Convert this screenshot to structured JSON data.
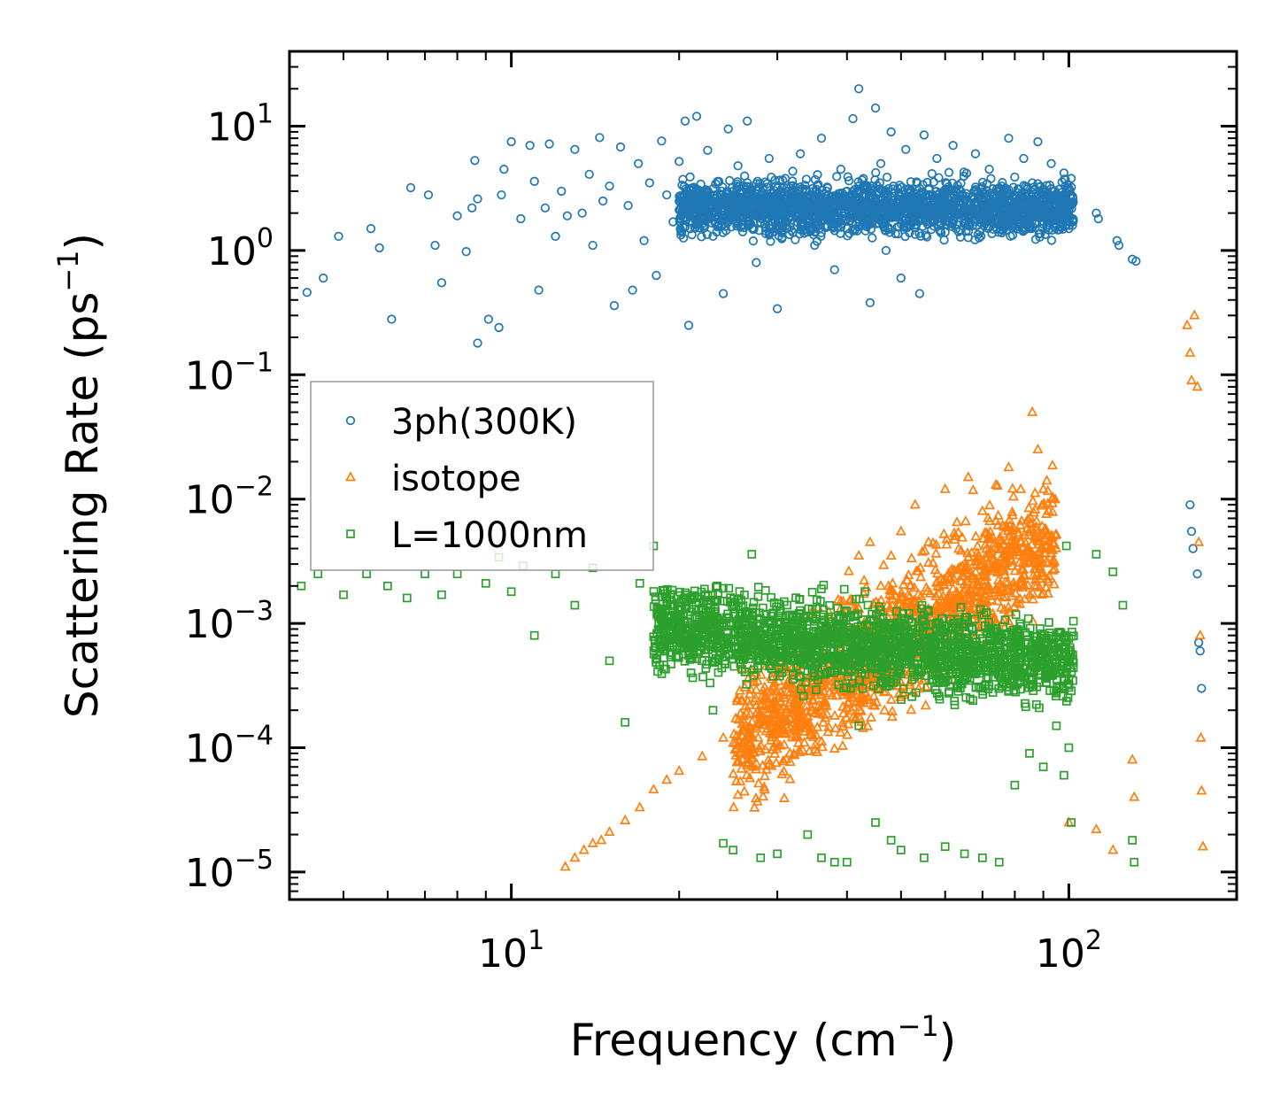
{
  "chart_data": {
    "type": "scatter",
    "x_scale": "log",
    "y_scale": "log",
    "xlim": [
      4,
      200
    ],
    "ylim": [
      6e-06,
      40
    ],
    "xlabel_main": "Frequency (cm",
    "xlabel_sup": "−1",
    "xlabel_tail": ")",
    "ylabel_main": "Scattering Rate (ps",
    "ylabel_sup": "−1",
    "ylabel_tail": ")",
    "x_ticks": [
      {
        "value": 10,
        "base": "10",
        "exp": "1"
      },
      {
        "value": 100,
        "base": "10",
        "exp": "2"
      }
    ],
    "y_ticks": [
      {
        "value": 10,
        "base": "10",
        "exp": "1"
      },
      {
        "value": 1,
        "base": "10",
        "exp": "0"
      },
      {
        "value": 0.1,
        "base": "10",
        "exp": "−1"
      },
      {
        "value": 0.01,
        "base": "10",
        "exp": "−2"
      },
      {
        "value": 0.001,
        "base": "10",
        "exp": "−3"
      },
      {
        "value": 0.0001,
        "base": "10",
        "exp": "−4"
      },
      {
        "value": 1e-05,
        "base": "10",
        "exp": "−5"
      }
    ],
    "legend_position": "middle-left",
    "series": [
      {
        "name": "3ph(300K)",
        "marker": "circle",
        "color": "#1f77b4",
        "points": [
          [
            4.3,
            0.46
          ],
          [
            4.6,
            0.6
          ],
          [
            4.9,
            1.3
          ],
          [
            5.6,
            1.5
          ],
          [
            5.8,
            1.05
          ],
          [
            6.1,
            0.28
          ],
          [
            6.6,
            3.2
          ],
          [
            7.1,
            2.8
          ],
          [
            7.3,
            1.1
          ],
          [
            7.5,
            0.55
          ],
          [
            8.0,
            1.9
          ],
          [
            8.3,
            0.98
          ],
          [
            8.5,
            2.2
          ],
          [
            8.6,
            5.3
          ],
          [
            8.7,
            2.6
          ],
          [
            8.7,
            0.18
          ],
          [
            9.1,
            0.28
          ],
          [
            9.5,
            0.24
          ],
          [
            9.6,
            2.8
          ],
          [
            9.7,
            4.5
          ],
          [
            10.0,
            7.5
          ],
          [
            10.4,
            1.8
          ],
          [
            10.8,
            7.0
          ],
          [
            11.0,
            3.6
          ],
          [
            11.2,
            0.48
          ],
          [
            11.5,
            2.2
          ],
          [
            11.7,
            7.2
          ],
          [
            12.0,
            1.3
          ],
          [
            12.3,
            3.0
          ],
          [
            12.6,
            1.9
          ],
          [
            13.0,
            6.5
          ],
          [
            13.4,
            2.0
          ],
          [
            13.8,
            4.1
          ],
          [
            14.0,
            1.1
          ],
          [
            14.4,
            8.1
          ],
          [
            14.6,
            2.5
          ],
          [
            15.0,
            3.3
          ],
          [
            15.3,
            0.36
          ],
          [
            15.7,
            6.8
          ],
          [
            16.2,
            2.3
          ],
          [
            16.5,
            0.48
          ],
          [
            16.9,
            5.0
          ],
          [
            17.3,
            1.2
          ],
          [
            17.7,
            3.5
          ],
          [
            18.2,
            0.63
          ],
          [
            18.6,
            7.6
          ],
          [
            19.0,
            2.8
          ],
          [
            19.5,
            1.7
          ],
          [
            20.0,
            5.2
          ],
          [
            20.5,
            11.0
          ],
          [
            20.8,
            0.25
          ],
          [
            21.0,
            3.1
          ],
          [
            21.5,
            12.0
          ],
          [
            22.0,
            2.0
          ],
          [
            22.5,
            6.4
          ],
          [
            23.0,
            1.3
          ],
          [
            23.5,
            3.6
          ],
          [
            24.0,
            0.45
          ],
          [
            24.5,
            9.5
          ],
          [
            25.0,
            2.4
          ],
          [
            25.5,
            4.8
          ],
          [
            26.0,
            1.6
          ],
          [
            26.5,
            11.0
          ],
          [
            27.0,
            3.0
          ],
          [
            27.5,
            0.8
          ],
          [
            28.0,
            2.2
          ],
          [
            29.0,
            5.5
          ],
          [
            29.5,
            1.9
          ],
          [
            30.0,
            0.34
          ],
          [
            31.0,
            3.8
          ],
          [
            32.0,
            1.4
          ],
          [
            33.0,
            6.0
          ],
          [
            34.0,
            2.6
          ],
          [
            35.0,
            1.1
          ],
          [
            36.0,
            8.0
          ],
          [
            37.0,
            2.0
          ],
          [
            38.0,
            0.7
          ],
          [
            39.0,
            4.5
          ],
          [
            40.0,
            1.5
          ],
          [
            41.0,
            11.5
          ],
          [
            42.0,
            20.0
          ],
          [
            43.0,
            3.2
          ],
          [
            44.0,
            0.38
          ],
          [
            45.0,
            14.0
          ],
          [
            46.0,
            5.0
          ],
          [
            47.0,
            1.0
          ],
          [
            48.0,
            9.0
          ],
          [
            49.0,
            2.4
          ],
          [
            50.0,
            0.6
          ],
          [
            51.0,
            6.5
          ],
          [
            52.0,
            3.0
          ],
          [
            54.0,
            0.45
          ],
          [
            55.0,
            8.5
          ],
          [
            57.0,
            2.0
          ],
          [
            58.0,
            5.5
          ],
          [
            60.0,
            1.4
          ],
          [
            62.0,
            7.0
          ],
          [
            64.0,
            3.0
          ],
          [
            66.0,
            1.8
          ],
          [
            68.0,
            6.0
          ],
          [
            70.0,
            2.6
          ],
          [
            72.0,
            4.5
          ],
          [
            75.0,
            3.2
          ],
          [
            78.0,
            8.0
          ],
          [
            80.0,
            2.2
          ],
          [
            83.0,
            5.5
          ],
          [
            86.0,
            3.5
          ],
          [
            88.0,
            7.5
          ],
          [
            90.0,
            2.8
          ],
          [
            93.0,
            5.0
          ],
          [
            96.0,
            3.1
          ],
          [
            98.0,
            4.2
          ],
          [
            100.0,
            1.5
          ],
          [
            101.0,
            3.8
          ],
          [
            112.0,
            2.0
          ],
          [
            113.0,
            1.8
          ],
          [
            122.0,
            1.2
          ],
          [
            123.0,
            1.1
          ],
          [
            130.0,
            0.85
          ],
          [
            132.0,
            0.82
          ],
          [
            165.0,
            0.009
          ],
          [
            166.0,
            0.0055
          ],
          [
            167.0,
            0.004
          ],
          [
            170.0,
            0.0025
          ],
          [
            171.0,
            0.0007
          ],
          [
            172.0,
            0.0006
          ],
          [
            173.0,
            0.0003
          ]
        ],
        "cloud": {
          "count": 2200,
          "xmin": 20,
          "xmax": 102,
          "ymin": 0.6,
          "ymax": 8
        }
      },
      {
        "name": "isotope",
        "marker": "triangle",
        "color": "#ff7f0e",
        "points": [
          [
            12.5,
            1.1e-05
          ],
          [
            13.0,
            1.3e-05
          ],
          [
            13.5,
            1.5e-05
          ],
          [
            14.0,
            1.7e-05
          ],
          [
            14.5,
            1.8e-05
          ],
          [
            15.0,
            2.1e-05
          ],
          [
            16.0,
            2.6e-05
          ],
          [
            17.0,
            3.3e-05
          ],
          [
            18.0,
            4.6e-05
          ],
          [
            19.0,
            5.5e-05
          ],
          [
            20.0,
            6.5e-05
          ],
          [
            22.0,
            8.5e-05
          ],
          [
            24.0,
            0.00012
          ],
          [
            26.0,
            0.00014
          ],
          [
            28.0,
            0.00016
          ],
          [
            30.0,
            0.00022
          ],
          [
            32.0,
            0.0003
          ],
          [
            35.0,
            0.00045
          ],
          [
            38.0,
            0.0008
          ],
          [
            41.0,
            0.0015
          ],
          [
            42.0,
            0.0035
          ],
          [
            44.0,
            0.0045
          ],
          [
            46.0,
            0.002
          ],
          [
            48.0,
            0.0035
          ],
          [
            50.0,
            0.0055
          ],
          [
            53.0,
            0.009
          ],
          [
            56.0,
            0.0045
          ],
          [
            60.0,
            0.012
          ],
          [
            63.0,
            0.0065
          ],
          [
            66.0,
            0.015
          ],
          [
            70.0,
            0.008
          ],
          [
            74.0,
            0.013
          ],
          [
            78.0,
            0.018
          ],
          [
            82.0,
            0.012
          ],
          [
            86.0,
            0.05
          ],
          [
            88.0,
            0.025
          ],
          [
            90.0,
            0.012
          ],
          [
            93.0,
            0.004
          ],
          [
            98.0,
            0.0004
          ],
          [
            100.0,
            2.5e-05
          ],
          [
            112.0,
            2.2e-05
          ],
          [
            120.0,
            1.5e-05
          ],
          [
            130.0,
            8e-05
          ],
          [
            131.0,
            4e-05
          ],
          [
            163.0,
            0.25
          ],
          [
            165.0,
            0.15
          ],
          [
            166.0,
            0.09
          ],
          [
            168.0,
            0.3
          ],
          [
            170.0,
            0.08
          ],
          [
            171.0,
            0.0045
          ],
          [
            172.0,
            0.0008
          ],
          [
            172.5,
            0.00012
          ],
          [
            173.0,
            4.5e-05
          ],
          [
            174.0,
            1.6e-05
          ]
        ],
        "cloud": {
          "count": 1500,
          "xmin": 25,
          "xmax": 95,
          "ymin": 2e-05,
          "ymax": 0.02
        }
      },
      {
        "name": "L=1000nm",
        "marker": "square",
        "color": "#2ca02c",
        "points": [
          [
            4.2,
            0.002
          ],
          [
            4.5,
            0.0025
          ],
          [
            5.0,
            0.0017
          ],
          [
            5.5,
            0.0025
          ],
          [
            6.0,
            0.002
          ],
          [
            6.5,
            0.0016
          ],
          [
            7.0,
            0.0025
          ],
          [
            7.5,
            0.0017
          ],
          [
            8.0,
            0.0025
          ],
          [
            9.0,
            0.0021
          ],
          [
            9.5,
            0.0034
          ],
          [
            10.0,
            0.0018
          ],
          [
            10.5,
            0.0029
          ],
          [
            11.0,
            0.0008
          ],
          [
            12.0,
            0.0025
          ],
          [
            13.0,
            0.0014
          ],
          [
            14.0,
            0.0028
          ],
          [
            15.0,
            0.0005
          ],
          [
            16.0,
            0.00016
          ],
          [
            17.0,
            0.0021
          ],
          [
            18.0,
            0.0042
          ],
          [
            19.0,
            0.0015
          ],
          [
            20.0,
            0.0011
          ],
          [
            21.0,
            0.0004
          ],
          [
            22.0,
            0.0007
          ],
          [
            23.0,
            0.0002
          ],
          [
            24.0,
            1.7e-05
          ],
          [
            25.0,
            1.5e-05
          ],
          [
            27.0,
            0.0036
          ],
          [
            28.0,
            1.3e-05
          ],
          [
            30.0,
            1.4e-05
          ],
          [
            32.0,
            0.0005
          ],
          [
            34.0,
            2e-05
          ],
          [
            36.0,
            1.3e-05
          ],
          [
            38.0,
            1.2e-05
          ],
          [
            40.0,
            1.2e-05
          ],
          [
            42.0,
            0.00015
          ],
          [
            45.0,
            2.5e-05
          ],
          [
            48.0,
            1.8e-05
          ],
          [
            50.0,
            1.5e-05
          ],
          [
            55.0,
            1.3e-05
          ],
          [
            60.0,
            1.6e-05
          ],
          [
            65.0,
            1.4e-05
          ],
          [
            70.0,
            1.3e-05
          ],
          [
            75.0,
            1.2e-05
          ],
          [
            80.0,
            5e-05
          ],
          [
            85.0,
            9e-05
          ],
          [
            90.0,
            7e-05
          ],
          [
            95.0,
            0.00015
          ],
          [
            98.0,
            6e-05
          ],
          [
            99.0,
            0.0042
          ],
          [
            100.0,
            0.0001
          ],
          [
            101.0,
            2.5e-05
          ],
          [
            112.0,
            0.0036
          ],
          [
            120.0,
            0.0026
          ],
          [
            125.0,
            0.0014
          ],
          [
            130.0,
            1.8e-05
          ],
          [
            131.0,
            1.2e-05
          ]
        ],
        "cloud": {
          "count": 2000,
          "xmin": 18,
          "xmax": 102,
          "ymin": 3e-05,
          "ymax": 0.003
        }
      }
    ]
  }
}
